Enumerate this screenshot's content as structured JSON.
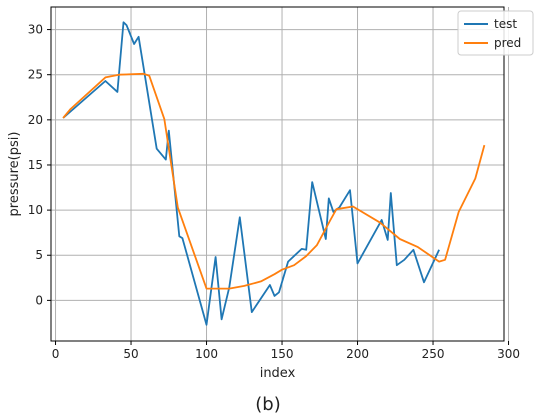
{
  "chart_data": {
    "type": "line",
    "title": "",
    "xlabel": "index",
    "ylabel": "pressure(psi)",
    "xlim": [
      -3,
      297
    ],
    "ylim": [
      -4.5,
      32.5
    ],
    "xticks": [
      0,
      50,
      100,
      150,
      200,
      250,
      300
    ],
    "yticks": [
      0,
      5,
      10,
      15,
      20,
      25,
      30
    ],
    "grid": true,
    "legend_position": "top-right",
    "caption": "(b)",
    "series": [
      {
        "name": "test",
        "color": "#1f77b4",
        "x": [
          5,
          33,
          41,
          45,
          47,
          52,
          55,
          59,
          67,
          73,
          75,
          82,
          84,
          100,
          106,
          110,
          115,
          122,
          130,
          142,
          145,
          148,
          154,
          163,
          166,
          170,
          179,
          181,
          184,
          188,
          195,
          200,
          216,
          220,
          222,
          226,
          231,
          237,
          244,
          254
        ],
        "y": [
          20.2,
          24.3,
          23.1,
          30.8,
          30.5,
          28.4,
          29.2,
          25.1,
          16.8,
          15.6,
          18.8,
          7.1,
          6.9,
          -2.7,
          4.8,
          -2.1,
          1.4,
          9.2,
          -1.3,
          1.7,
          0.5,
          0.9,
          4.3,
          5.7,
          5.6,
          13.1,
          6.8,
          11.3,
          9.8,
          10.3,
          12.2,
          4.1,
          8.9,
          6.7,
          11.9,
          3.9,
          4.5,
          5.6,
          2.0,
          5.6
        ]
      },
      {
        "name": "pred",
        "color": "#ff7f0e",
        "x": [
          5,
          10,
          33,
          42,
          58,
          62,
          72,
          81,
          100,
          106,
          115,
          125,
          136,
          145,
          150,
          158,
          166,
          173,
          182,
          186,
          197,
          215,
          228,
          240,
          254,
          258,
          267,
          278,
          284
        ],
        "y": [
          20.2,
          21.2,
          24.7,
          25.0,
          25.1,
          24.9,
          20.1,
          10.3,
          1.3,
          1.3,
          1.3,
          1.6,
          2.1,
          2.9,
          3.4,
          3.9,
          4.9,
          6.1,
          8.9,
          10.1,
          10.4,
          8.6,
          6.8,
          5.9,
          4.3,
          4.5,
          9.8,
          13.5,
          17.2
        ]
      }
    ]
  }
}
